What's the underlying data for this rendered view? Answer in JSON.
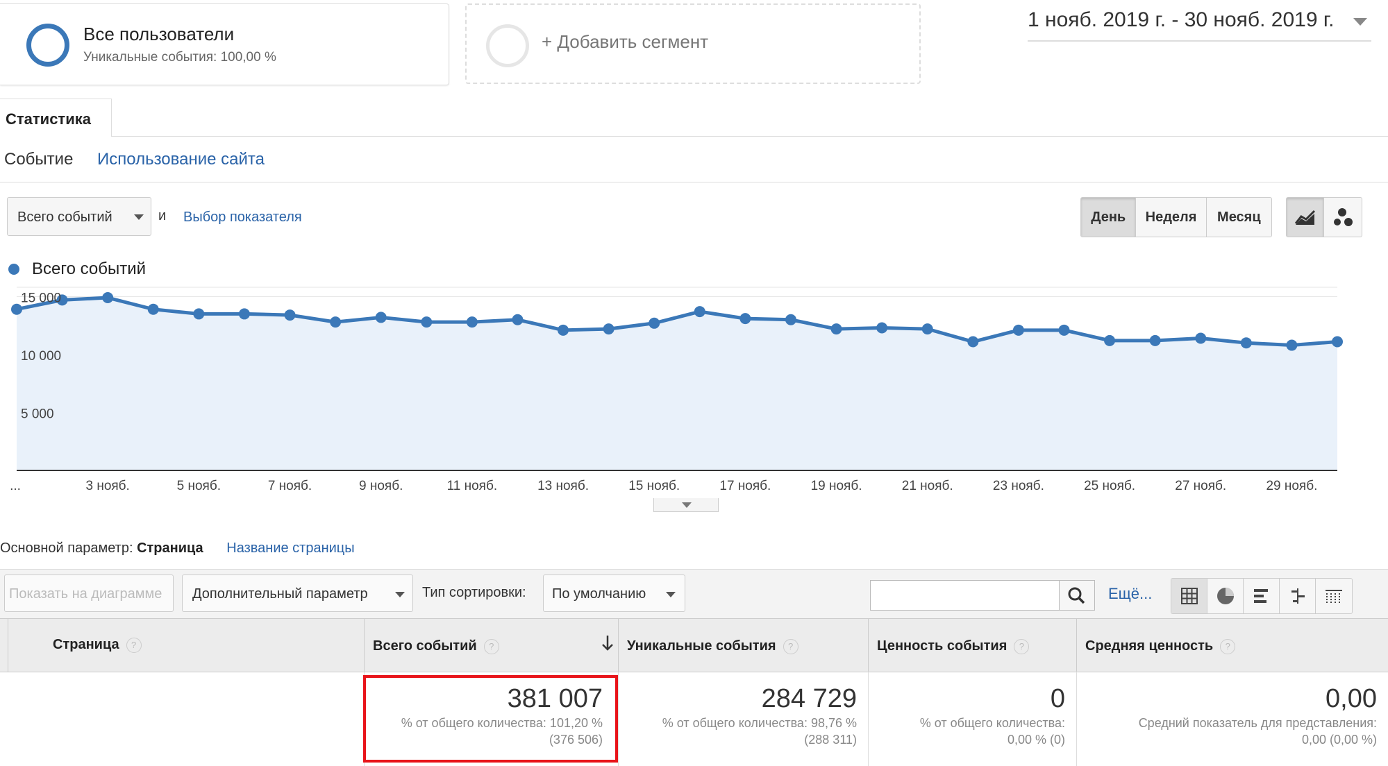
{
  "segments": {
    "active": {
      "title": "Все пользователи",
      "subtitle": "Уникальные события: 100,00 %"
    },
    "add_label": "+ Добавить сегмент"
  },
  "date_range": "1 нояб. 2019 г. - 30 нояб. 2019 г.",
  "tabs": {
    "active": "Статистика"
  },
  "subtabs": [
    "Событие",
    "Использование сайта"
  ],
  "controls": {
    "metric_select": "Всего событий",
    "and": "и",
    "pick_metric": "Выбор показателя",
    "periods": [
      "День",
      "Неделя",
      "Месяц"
    ],
    "active_period": "День"
  },
  "chart_data": {
    "type": "area",
    "series": [
      {
        "name": "Всего событий",
        "color": "#3b78b8",
        "x": [
          "1 нояб.",
          "2 нояб.",
          "3 нояб.",
          "4 нояб.",
          "5 нояб.",
          "6 нояб.",
          "7 нояб.",
          "8 нояб.",
          "9 нояб.",
          "10 нояб.",
          "11 нояб.",
          "12 нояб.",
          "13 нояб.",
          "14 нояб.",
          "15 нояб.",
          "16 нояб.",
          "17 нояб.",
          "18 нояб.",
          "19 нояб.",
          "20 нояб.",
          "21 нояб.",
          "22 нояб.",
          "23 нояб.",
          "24 нояб.",
          "25 нояб.",
          "26 нояб.",
          "27 нояб.",
          "28 нояб.",
          "29 нояб.",
          "30 нояб."
        ],
        "values": [
          13900,
          14700,
          14900,
          13900,
          13500,
          13500,
          13400,
          12800,
          13200,
          12800,
          12800,
          13000,
          12100,
          12200,
          12700,
          13700,
          13100,
          13000,
          12200,
          12300,
          12200,
          11100,
          12100,
          12100,
          11200,
          11200,
          11400,
          11000,
          10800,
          11100
        ]
      }
    ],
    "y_ticks": [
      "5 000",
      "10 000",
      "15 000"
    ],
    "x_ticks": [
      "...",
      "3 нояб.",
      "5 нояб.",
      "7 нояб.",
      "9 нояб.",
      "11 нояб.",
      "13 нояб.",
      "15 нояб.",
      "17 нояб.",
      "19 нояб.",
      "21 нояб.",
      "23 нояб.",
      "25 нояб.",
      "27 нояб.",
      "29 нояб."
    ],
    "ylim": [
      0,
      15000
    ],
    "grid": true,
    "legend": "top-left"
  },
  "dimension": {
    "label": "Основной параметр:",
    "primary": "Страница",
    "secondary": "Название страницы"
  },
  "toolbar": {
    "plot_rows": "Показать на диаграмме",
    "secondary_dim": "Дополнительный параметр",
    "sort_label": "Тип сортировки:",
    "sort_value": "По умолчанию",
    "more": "Ещё..."
  },
  "table": {
    "headers": [
      "Страница",
      "Всего событий",
      "Уникальные события",
      "Ценность события",
      "Средняя ценность"
    ],
    "totals": [
      {
        "value": "381 007",
        "line1": "% от общего количества: 101,20 %",
        "line2": "(376 506)"
      },
      {
        "value": "284 729",
        "line1": "% от общего количества: 98,76 %",
        "line2": "(288 311)"
      },
      {
        "value": "0",
        "line1": "% от общего количества:",
        "line2": "0,00 % (0)"
      },
      {
        "value": "0,00",
        "line1": "Средний показатель для представления:",
        "line2": "0,00 (0,00 %)"
      }
    ]
  }
}
